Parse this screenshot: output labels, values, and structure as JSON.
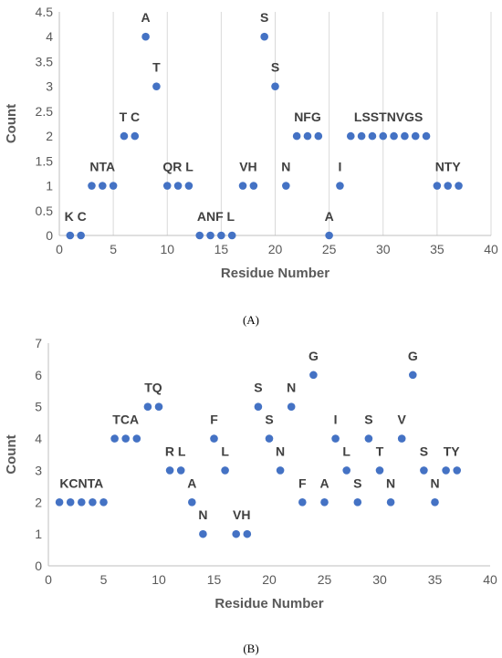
{
  "chart_data": [
    {
      "panel": "A",
      "type": "scatter",
      "xlabel": "Residue Number",
      "ylabel": "Count",
      "xlim": [
        0,
        40
      ],
      "ylim": [
        0,
        4.5
      ],
      "xticks": [
        0,
        5,
        10,
        15,
        20,
        25,
        30,
        35,
        40
      ],
      "yticks": [
        0,
        0.5,
        1,
        1.5,
        2,
        2.5,
        3,
        3.5,
        4,
        4.5
      ],
      "grid": "vertical",
      "color": "#4472c4",
      "points": [
        {
          "x": 1,
          "y": 0
        },
        {
          "x": 2,
          "y": 0
        },
        {
          "x": 3,
          "y": 1
        },
        {
          "x": 4,
          "y": 1
        },
        {
          "x": 5,
          "y": 1
        },
        {
          "x": 6,
          "y": 2
        },
        {
          "x": 7,
          "y": 2
        },
        {
          "x": 8,
          "y": 4
        },
        {
          "x": 9,
          "y": 3
        },
        {
          "x": 10,
          "y": 1
        },
        {
          "x": 11,
          "y": 1
        },
        {
          "x": 12,
          "y": 1
        },
        {
          "x": 13,
          "y": 0
        },
        {
          "x": 14,
          "y": 0
        },
        {
          "x": 15,
          "y": 0
        },
        {
          "x": 16,
          "y": 0
        },
        {
          "x": 17,
          "y": 1
        },
        {
          "x": 18,
          "y": 1
        },
        {
          "x": 19,
          "y": 4
        },
        {
          "x": 20,
          "y": 3
        },
        {
          "x": 21,
          "y": 1
        },
        {
          "x": 22,
          "y": 2
        },
        {
          "x": 23,
          "y": 2
        },
        {
          "x": 24,
          "y": 2
        },
        {
          "x": 25,
          "y": 0
        },
        {
          "x": 26,
          "y": 1
        },
        {
          "x": 27,
          "y": 2
        },
        {
          "x": 28,
          "y": 2
        },
        {
          "x": 29,
          "y": 2
        },
        {
          "x": 30,
          "y": 2
        },
        {
          "x": 31,
          "y": 2
        },
        {
          "x": 32,
          "y": 2
        },
        {
          "x": 33,
          "y": 2
        },
        {
          "x": 34,
          "y": 2
        },
        {
          "x": 35,
          "y": 1
        },
        {
          "x": 36,
          "y": 1
        },
        {
          "x": 37,
          "y": 1
        }
      ],
      "labels": [
        {
          "text": "K C",
          "x": 1.5,
          "y": 0
        },
        {
          "text": "NTA",
          "x": 4,
          "y": 1
        },
        {
          "text": "T C",
          "x": 6.5,
          "y": 2
        },
        {
          "text": "A",
          "x": 8,
          "y": 4
        },
        {
          "text": "T",
          "x": 9,
          "y": 3
        },
        {
          "text": "QR L",
          "x": 11,
          "y": 1
        },
        {
          "text": "ANF L",
          "x": 14.5,
          "y": 0
        },
        {
          "text": "VH",
          "x": 17.5,
          "y": 1
        },
        {
          "text": "S",
          "x": 19,
          "y": 4
        },
        {
          "text": "S",
          "x": 20,
          "y": 3
        },
        {
          "text": "N",
          "x": 21,
          "y": 1
        },
        {
          "text": "NFG",
          "x": 23,
          "y": 2
        },
        {
          "text": "A",
          "x": 25,
          "y": 0
        },
        {
          "text": "I",
          "x": 26,
          "y": 1
        },
        {
          "text": "LSSTNVGS",
          "x": 30.5,
          "y": 2
        },
        {
          "text": "NTY",
          "x": 36,
          "y": 1
        }
      ]
    },
    {
      "panel": "B",
      "type": "scatter",
      "xlabel": "Residue Number",
      "ylabel": "Count",
      "xlim": [
        0,
        40
      ],
      "ylim": [
        0,
        7
      ],
      "xticks": [
        0,
        5,
        10,
        15,
        20,
        25,
        30,
        35,
        40
      ],
      "yticks": [
        0,
        1,
        2,
        3,
        4,
        5,
        6,
        7
      ],
      "grid": "none",
      "color": "#4472c4",
      "points": [
        {
          "x": 1,
          "y": 2
        },
        {
          "x": 2,
          "y": 2
        },
        {
          "x": 3,
          "y": 2
        },
        {
          "x": 4,
          "y": 2
        },
        {
          "x": 5,
          "y": 2
        },
        {
          "x": 6,
          "y": 4
        },
        {
          "x": 7,
          "y": 4
        },
        {
          "x": 8,
          "y": 4
        },
        {
          "x": 9,
          "y": 5
        },
        {
          "x": 10,
          "y": 5
        },
        {
          "x": 11,
          "y": 3
        },
        {
          "x": 12,
          "y": 3
        },
        {
          "x": 13,
          "y": 2
        },
        {
          "x": 14,
          "y": 1
        },
        {
          "x": 15,
          "y": 4
        },
        {
          "x": 16,
          "y": 3
        },
        {
          "x": 17,
          "y": 1
        },
        {
          "x": 18,
          "y": 1
        },
        {
          "x": 19,
          "y": 5
        },
        {
          "x": 20,
          "y": 4
        },
        {
          "x": 21,
          "y": 3
        },
        {
          "x": 22,
          "y": 5
        },
        {
          "x": 23,
          "y": 2
        },
        {
          "x": 24,
          "y": 6
        },
        {
          "x": 25,
          "y": 2
        },
        {
          "x": 26,
          "y": 4
        },
        {
          "x": 27,
          "y": 3
        },
        {
          "x": 28,
          "y": 2
        },
        {
          "x": 29,
          "y": 4
        },
        {
          "x": 30,
          "y": 3
        },
        {
          "x": 31,
          "y": 2
        },
        {
          "x": 32,
          "y": 4
        },
        {
          "x": 33,
          "y": 6
        },
        {
          "x": 34,
          "y": 3
        },
        {
          "x": 35,
          "y": 2
        },
        {
          "x": 36,
          "y": 3
        },
        {
          "x": 37,
          "y": 3
        }
      ],
      "labels": [
        {
          "text": "KCNTA",
          "x": 3,
          "y": 2
        },
        {
          "text": "TCA",
          "x": 7,
          "y": 4
        },
        {
          "text": "TQ",
          "x": 9.5,
          "y": 5
        },
        {
          "text": "R L",
          "x": 11.5,
          "y": 3
        },
        {
          "text": "A",
          "x": 13,
          "y": 2
        },
        {
          "text": "N",
          "x": 14,
          "y": 1
        },
        {
          "text": "F",
          "x": 15,
          "y": 4
        },
        {
          "text": "L",
          "x": 16,
          "y": 3
        },
        {
          "text": "VH",
          "x": 17.5,
          "y": 1
        },
        {
          "text": "S",
          "x": 19,
          "y": 5
        },
        {
          "text": "S",
          "x": 20,
          "y": 4
        },
        {
          "text": "N",
          "x": 21,
          "y": 3
        },
        {
          "text": "N",
          "x": 22,
          "y": 5
        },
        {
          "text": "F",
          "x": 23,
          "y": 2
        },
        {
          "text": "G",
          "x": 24,
          "y": 6
        },
        {
          "text": "A",
          "x": 25,
          "y": 2
        },
        {
          "text": "I",
          "x": 26,
          "y": 4
        },
        {
          "text": "L",
          "x": 27,
          "y": 3
        },
        {
          "text": "S",
          "x": 28,
          "y": 2
        },
        {
          "text": "S",
          "x": 29,
          "y": 4
        },
        {
          "text": "T",
          "x": 30,
          "y": 3
        },
        {
          "text": "N",
          "x": 31,
          "y": 2
        },
        {
          "text": "V",
          "x": 32,
          "y": 4
        },
        {
          "text": "G",
          "x": 33,
          "y": 6
        },
        {
          "text": "S",
          "x": 34,
          "y": 3
        },
        {
          "text": "N",
          "x": 35,
          "y": 2
        },
        {
          "text": "TY",
          "x": 36.5,
          "y": 3
        }
      ]
    }
  ],
  "captions": {
    "a": "(A)",
    "b": "(B)"
  }
}
